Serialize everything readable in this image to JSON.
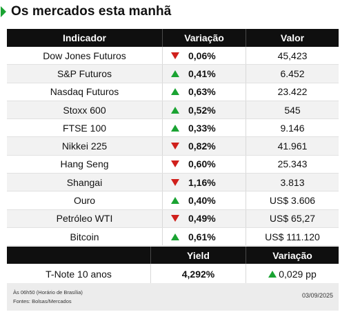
{
  "title": "Os mercados esta manhã",
  "colors": {
    "up": "#1aa332",
    "down": "#d0201c",
    "header_bg": "#0f0f0f"
  },
  "table": {
    "headers": {
      "indicator": "Indicador",
      "change": "Variação",
      "value": "Valor"
    },
    "rows": [
      {
        "name": "Dow Jones Futuros",
        "direction": "down",
        "change": "0,06%",
        "value": "45,423"
      },
      {
        "name": "S&P Futuros",
        "direction": "up",
        "change": "0,41%",
        "value": "6.452"
      },
      {
        "name": "Nasdaq Futuros",
        "direction": "up",
        "change": "0,63%",
        "value": "23.422"
      },
      {
        "name": "Stoxx 600",
        "direction": "up",
        "change": "0,52%",
        "value": "545"
      },
      {
        "name": "FTSE 100",
        "direction": "up",
        "change": "0,33%",
        "value": "9.146"
      },
      {
        "name": "Nikkei 225",
        "direction": "down",
        "change": "0,82%",
        "value": "41.961"
      },
      {
        "name": "Hang Seng",
        "direction": "down",
        "change": "0,60%",
        "value": "25.343"
      },
      {
        "name": "Shangai",
        "direction": "down",
        "change": "1,16%",
        "value": "3.813"
      },
      {
        "name": "Ouro",
        "direction": "up",
        "change": "0,40%",
        "value": "US$ 3.606"
      },
      {
        "name": "Petróleo WTI",
        "direction": "down",
        "change": "0,49%",
        "value": "US$ 65,27"
      },
      {
        "name": "Bitcoin",
        "direction": "up",
        "change": "0,61%",
        "value": "US$ 111.120"
      }
    ]
  },
  "yield": {
    "headers": {
      "yield": "Yield",
      "change": "Variação"
    },
    "row": {
      "name": "T-Note 10 anos",
      "yield": "4,292%",
      "direction": "up",
      "change": "0,029 pp"
    }
  },
  "footer": {
    "note1": "Às 06h50 (Horário de Brasília)",
    "note2": "Fontes: Bolsas/Mercados",
    "date": "03/09/2025"
  }
}
